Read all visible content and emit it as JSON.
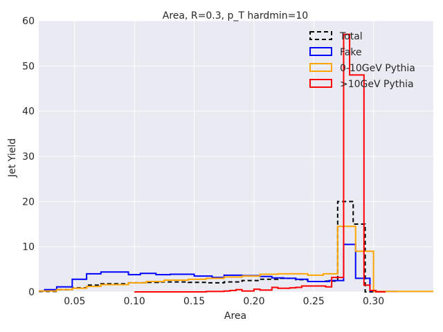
{
  "chart_data": {
    "type": "histogram-step",
    "title": "Area, R=0.3, p_T hardmin=10",
    "xlabel": "Area",
    "ylabel": "Jet Yield",
    "xlim": [
      0.02,
      0.35
    ],
    "ylim": [
      0,
      60
    ],
    "xticks": [
      "0.05",
      "0.10",
      "0.15",
      "0.20",
      "0.25",
      "0.30"
    ],
    "xtick_values": [
      0.05,
      0.1,
      0.15,
      0.2,
      0.25,
      0.3
    ],
    "yticks": [
      "0",
      "10",
      "20",
      "30",
      "40",
      "50",
      "60"
    ],
    "ytick_values": [
      0,
      10,
      20,
      30,
      40,
      50,
      60
    ],
    "grid": true,
    "background": "#EAEAF2",
    "legend_position": "top-right",
    "series": [
      {
        "name": "Total",
        "color": "#000000",
        "style": "dashed",
        "edges": [
          0.02,
          0.036,
          0.048,
          0.06,
          0.072,
          0.095,
          0.11,
          0.12,
          0.13,
          0.145,
          0.16,
          0.175,
          0.19,
          0.205,
          0.22,
          0.235,
          0.245,
          0.26,
          0.27,
          0.283,
          0.293,
          0.3
        ],
        "values": [
          0.1,
          0.5,
          0.9,
          1.5,
          1.8,
          2.0,
          2.1,
          2.2,
          2.2,
          2.1,
          2.0,
          2.2,
          2.5,
          2.8,
          3.0,
          2.7,
          2.3,
          2.4,
          20.0,
          15.0,
          0.0
        ]
      },
      {
        "name": "Fake",
        "color": "#0000ff",
        "style": "solid",
        "edges": [
          0.02,
          0.025,
          0.035,
          0.048,
          0.06,
          0.072,
          0.095,
          0.105,
          0.118,
          0.13,
          0.15,
          0.165,
          0.175,
          0.19,
          0.205,
          0.215,
          0.225,
          0.235,
          0.245,
          0.255,
          0.263,
          0.27,
          0.275,
          0.285,
          0.297,
          0.3,
          0.32
        ],
        "values": [
          0.2,
          0.5,
          1.1,
          2.8,
          4.0,
          4.4,
          3.8,
          4.1,
          3.8,
          3.9,
          3.5,
          3.2,
          3.7,
          3.6,
          3.4,
          3.1,
          3.0,
          2.8,
          2.3,
          2.3,
          2.5,
          2.5,
          10.5,
          3.0,
          0.2,
          0.1
        ]
      },
      {
        "name": "0-10GeV Pythia",
        "color": "#ffa500",
        "style": "solid",
        "edges": [
          0.02,
          0.035,
          0.048,
          0.06,
          0.072,
          0.095,
          0.11,
          0.125,
          0.145,
          0.16,
          0.175,
          0.19,
          0.205,
          0.22,
          0.235,
          0.245,
          0.258,
          0.27,
          0.285,
          0.3,
          0.35
        ],
        "values": [
          0.2,
          0.5,
          0.8,
          1.2,
          1.6,
          2.0,
          2.3,
          2.6,
          2.8,
          3.0,
          3.3,
          3.5,
          3.9,
          4.0,
          4.0,
          3.7,
          4.0,
          14.5,
          9.0,
          0.1
        ]
      },
      {
        "name": ">10GeV Pythia",
        "color": "#ff0000",
        "style": "solid",
        "edges": [
          0.1,
          0.13,
          0.16,
          0.175,
          0.18,
          0.185,
          0.19,
          0.195,
          0.2,
          0.205,
          0.215,
          0.22,
          0.225,
          0.23,
          0.235,
          0.24,
          0.245,
          0.26,
          0.265,
          0.27,
          0.275,
          0.28,
          0.288,
          0.292,
          0.297,
          0.302,
          0.31
        ],
        "values": [
          0.0,
          0.0,
          0.1,
          0.2,
          0.3,
          0.5,
          0.2,
          0.2,
          0.6,
          0.4,
          1.0,
          0.8,
          0.8,
          0.9,
          1.0,
          1.3,
          1.3,
          1.1,
          3.2,
          3.2,
          57.0,
          48.0,
          48.0,
          1.5,
          0.3,
          0.0
        ]
      }
    ]
  }
}
